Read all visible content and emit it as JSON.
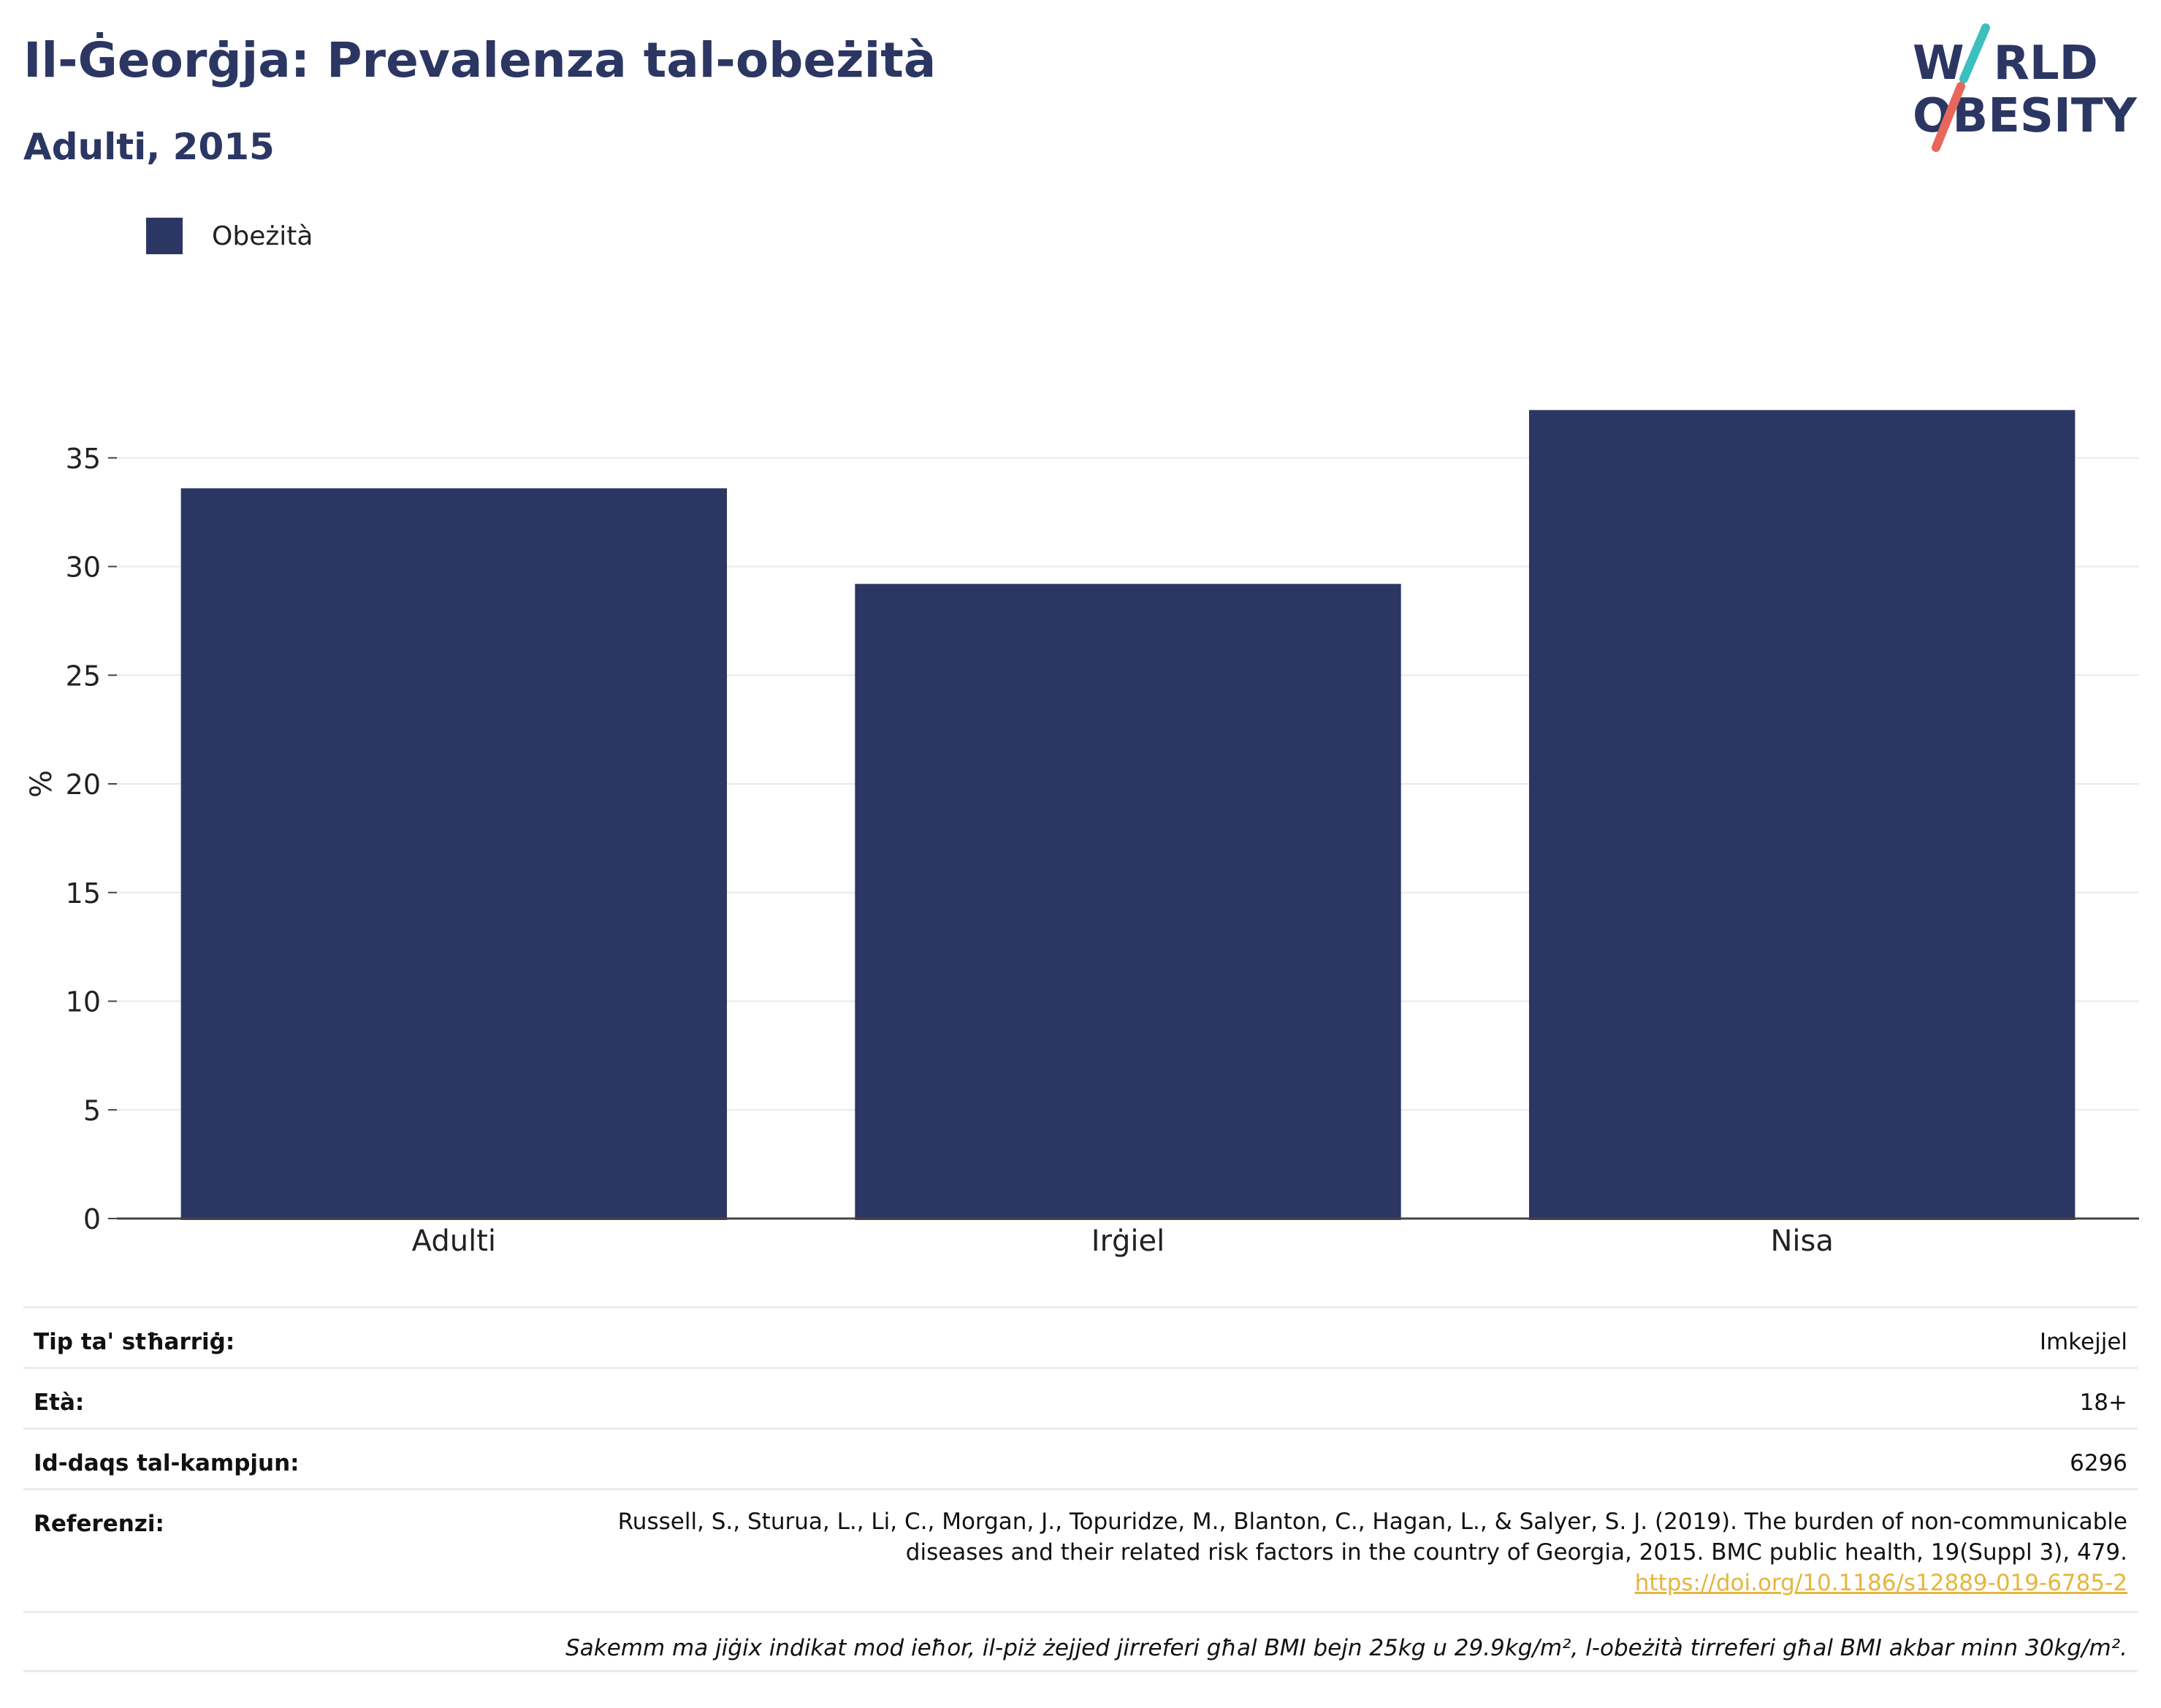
{
  "title": "Il-Ġeorġja: Prevalenza tal-obeżità",
  "subtitle": "Adulti, 2015",
  "logo": {
    "line1_a": "W",
    "line1_b": "RLD",
    "line2_a": "O",
    "line2_b": "BESITY"
  },
  "colors": {
    "bar": "#2b3663",
    "accent_teal": "#3bbfbf",
    "accent_red": "#e8675a",
    "link": "#e6b53c"
  },
  "chart_data": {
    "type": "bar",
    "categories": [
      "Adulti",
      "Irġiel",
      "Nisa"
    ],
    "series": [
      {
        "name": "Obeżità",
        "values": [
          33.6,
          29.2,
          37.2
        ]
      }
    ],
    "ylabel": "%",
    "xlabel": "",
    "ylim": [
      0,
      40
    ],
    "yticks": [
      0,
      5,
      10,
      15,
      20,
      25,
      30,
      35
    ],
    "grid": true,
    "legend": "top-left"
  },
  "info": {
    "survey_type_label": "Tip ta' stħarriġ:",
    "survey_type_value": "Imkejjel",
    "age_label": "Età:",
    "age_value": "18+",
    "sample_label": "Id-daqs tal-kampjun:",
    "sample_value": "6296",
    "reference_label": "Referenzi:",
    "reference_line1": "Russell, S., Sturua, L., Li, C., Morgan, J., Topuridze, M., Blanton, C., Hagan, L., & Salyer, S. J. (2019). The burden of non-communicable",
    "reference_line2": "diseases and their related risk factors in the country of Georgia, 2015. BMC public health, 19(Suppl 3), 479.",
    "reference_link": "https://doi.org/10.1186/s12889-019-6785-2",
    "note": "Sakemm ma jiġix indikat mod ieħor, il-piż żejjed jirreferi għal BMI bejn 25kg u 29.9kg/m², l-obeżità tirreferi għal BMI akbar minn 30kg/m²."
  }
}
